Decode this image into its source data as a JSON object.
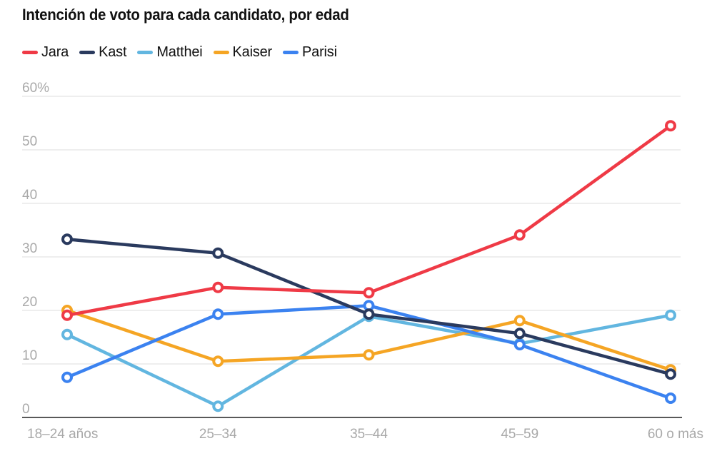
{
  "chart_data": {
    "type": "line",
    "title": "Intención de voto para cada candidato, por edad",
    "xlabel": "",
    "ylabel": "",
    "categories": [
      "18–24 años",
      "25–34",
      "35–44",
      "45–59",
      "60 o más"
    ],
    "ylim": [
      0,
      60
    ],
    "yticks": [
      0,
      10,
      20,
      30,
      40,
      50,
      60
    ],
    "ytick_labels": [
      "0",
      "10",
      "20",
      "30",
      "40",
      "50",
      "60%"
    ],
    "grid": true,
    "legend_position": "top-left",
    "series": [
      {
        "name": "Jara",
        "color": "#ef3a46",
        "values": [
          19.1,
          24.3,
          23.3,
          34.1,
          54.5
        ]
      },
      {
        "name": "Kast",
        "color": "#2a3a5e",
        "values": [
          33.3,
          30.7,
          19.3,
          15.7,
          8.1
        ]
      },
      {
        "name": "Matthei",
        "color": "#62b6e0",
        "values": [
          15.5,
          2.1,
          18.9,
          13.8,
          19.1
        ]
      },
      {
        "name": "Kaiser",
        "color": "#f5a524",
        "values": [
          20.0,
          10.5,
          11.7,
          18.1,
          8.9
        ]
      },
      {
        "name": "Parisi",
        "color": "#3b82f0",
        "values": [
          7.5,
          19.3,
          20.9,
          13.6,
          3.6
        ]
      }
    ],
    "draw_order": [
      "Matthei",
      "Kaiser",
      "Parisi",
      "Kast",
      "Jara"
    ]
  }
}
